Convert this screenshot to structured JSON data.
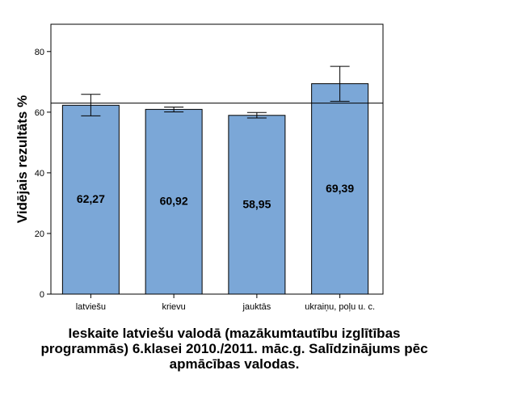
{
  "chart_data": {
    "type": "bar",
    "categories": [
      "latviešu",
      "krievu",
      "jauktās",
      "ukraiņu, poļu u. c."
    ],
    "values": [
      62.27,
      60.92,
      58.95,
      69.39
    ],
    "data_labels": [
      "62,27",
      "60,92",
      "58,95",
      "69,39"
    ],
    "error_bars": [
      {
        "low": 58.8,
        "high": 65.9
      },
      {
        "low": 60.1,
        "high": 61.7
      },
      {
        "low": 58.1,
        "high": 59.9
      },
      {
        "low": 63.6,
        "high": 75.1
      }
    ],
    "reference_line": 63.0,
    "ylim": [
      0,
      89
    ],
    "yticks": [
      0,
      20,
      40,
      60,
      80
    ],
    "ylabel": "Vidējais rezultāts %",
    "xlabel": "Ieskaite latviešu valodā (mazākumtautību izglītības programmās) 6.klasei 2010./2011. māc.g. Salīdzinājums pēc apmācības valodas.",
    "grid": false,
    "legend": "none",
    "bar_color": "#7ba7d7"
  }
}
